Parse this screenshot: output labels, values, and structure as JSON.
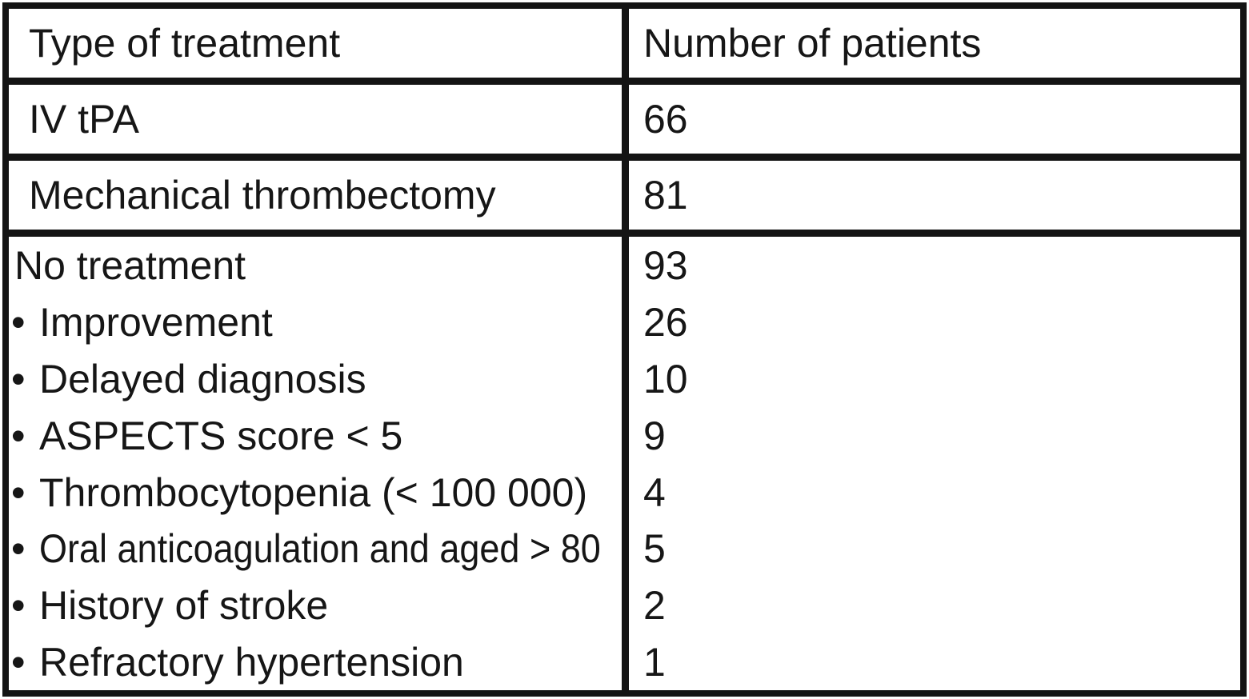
{
  "bullets": {
    "glyph": "•"
  },
  "table": {
    "header": {
      "treatment": "Type of treatment",
      "patients": "Number of patients"
    },
    "rows": [
      {
        "treatment": "IV tPA",
        "patients": "66"
      },
      {
        "treatment": "Mechanical thrombectomy",
        "patients": "81"
      }
    ],
    "no_treatment": {
      "lines": [
        {
          "label": "No treatment",
          "patients": "93"
        },
        {
          "label": "Improvement",
          "patients": "26"
        },
        {
          "label": "Delayed diagnosis",
          "patients": "10"
        },
        {
          "label": "ASPECTS score < 5",
          "patients": "9"
        },
        {
          "label": "Thrombocytopenia (< 100 000)",
          "patients": "4"
        },
        {
          "label": "Oral anticoagulation and aged > 80",
          "patients": "5"
        },
        {
          "label": "History of stroke",
          "patients": "2"
        },
        {
          "label": "Refractory hypertension",
          "patients": "1"
        }
      ]
    }
  },
  "chart_data": {
    "type": "table",
    "columns": [
      "Type of treatment",
      "Number of patients"
    ],
    "rows": [
      [
        "IV tPA",
        66
      ],
      [
        "Mechanical thrombectomy",
        81
      ],
      [
        "No treatment",
        93
      ],
      [
        "• Improvement",
        26
      ],
      [
        "• Delayed diagnosis",
        10
      ],
      [
        "• ASPECTS score < 5",
        9
      ],
      [
        "• Thrombocytopenia (< 100 000)",
        4
      ],
      [
        "• Oral anticoagulation and aged > 80",
        5
      ],
      [
        "• History of stroke",
        2
      ],
      [
        "• Refractory hypertension",
        1
      ]
    ]
  },
  "colors": {
    "border": "#141414",
    "text": "#161616",
    "cell_background": "#ffffff"
  }
}
